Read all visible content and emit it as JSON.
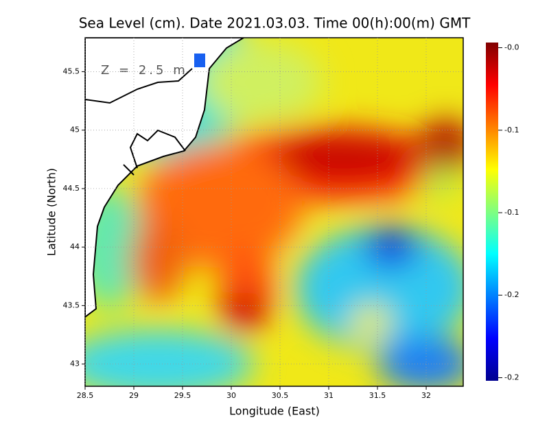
{
  "chart_data": {
    "type": "heatmap",
    "title": "Sea Level (cm). Date 2021.03.03. Time 00(h):00(m) GMT",
    "annotation": "Z = 2.5 m",
    "xlabel": "Longitude (East)",
    "ylabel": "Latitude (North)",
    "xlim": [
      28.5,
      32.38
    ],
    "xticks": [
      28.5,
      29,
      29.5,
      30,
      30.5,
      31,
      31.5,
      32
    ],
    "ylim": [
      42.81,
      45.79
    ],
    "yticks": [
      43,
      43.5,
      44,
      44.5,
      45,
      45.5
    ],
    "grid": true,
    "colorbar": {
      "lim": [
        -0.2015,
        -0.0375
      ],
      "ticks": [
        {
          "value": -0.04,
          "label": "-0.0"
        },
        {
          "value": -0.08,
          "label": "-0.1"
        },
        {
          "value": -0.12,
          "label": "-0.1"
        },
        {
          "value": -0.16,
          "label": "-0.2"
        },
        {
          "value": -0.2,
          "label": "-0.2"
        }
      ]
    }
  }
}
